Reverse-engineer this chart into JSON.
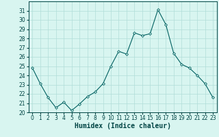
{
  "x": [
    0,
    1,
    2,
    3,
    4,
    5,
    6,
    7,
    8,
    9,
    10,
    11,
    12,
    13,
    14,
    15,
    16,
    17,
    18,
    19,
    20,
    21,
    22,
    23
  ],
  "y": [
    24.8,
    23.1,
    21.6,
    20.5,
    21.1,
    20.2,
    20.9,
    21.7,
    22.2,
    23.1,
    25.0,
    26.6,
    26.3,
    28.6,
    28.3,
    28.5,
    31.1,
    29.5,
    26.4,
    25.2,
    24.8,
    24.0,
    23.1,
    21.6
  ],
  "line_color": "#006060",
  "marker": "D",
  "marker_size": 2.0,
  "bg_color": "#d8f5f0",
  "grid_color": "#b0ddd8",
  "xlabel": "Humidex (Indice chaleur)",
  "ylim": [
    20,
    32
  ],
  "xlim": [
    -0.5,
    23.5
  ],
  "yticks": [
    20,
    21,
    22,
    23,
    24,
    25,
    26,
    27,
    28,
    29,
    30,
    31
  ],
  "xticks": [
    0,
    1,
    2,
    3,
    4,
    5,
    6,
    7,
    8,
    9,
    10,
    11,
    12,
    13,
    14,
    15,
    16,
    17,
    18,
    19,
    20,
    21,
    22,
    23
  ],
  "title_color": "#004444",
  "axis_color": "#004444",
  "font_size_label": 7,
  "font_size_tick": 5.5
}
